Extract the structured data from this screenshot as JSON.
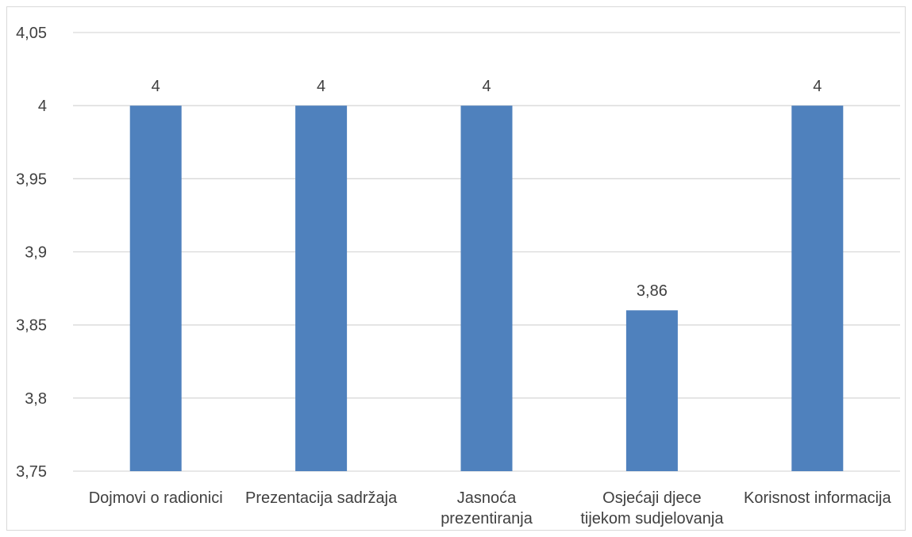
{
  "chart_data": {
    "type": "bar",
    "categories": [
      [
        "Dojmovi o radionici"
      ],
      [
        "Prezentacija sadržaja"
      ],
      [
        "Jasnoća",
        "prezentiranja"
      ],
      [
        "Osjećaji djece",
        "tijekom sudjelovanja"
      ],
      [
        "Korisnost informacija"
      ]
    ],
    "values": [
      4,
      4,
      4,
      3.86,
      4
    ],
    "value_labels": [
      "4",
      "4",
      "4",
      "3,86",
      "4"
    ],
    "title": "",
    "xlabel": "",
    "ylabel": "",
    "ylim": [
      3.75,
      4.05
    ],
    "y_ticks": [
      3.75,
      3.8,
      3.85,
      3.9,
      3.95,
      4,
      4.05
    ],
    "y_tick_labels": [
      "3,75",
      "3,8",
      "3,85",
      "3,9",
      "3,95",
      "4",
      "4,05"
    ],
    "grid": true,
    "legend": "none",
    "bar_color": "#4f81bd",
    "grid_color": "#d9d9d9",
    "text_color": "#404040"
  }
}
